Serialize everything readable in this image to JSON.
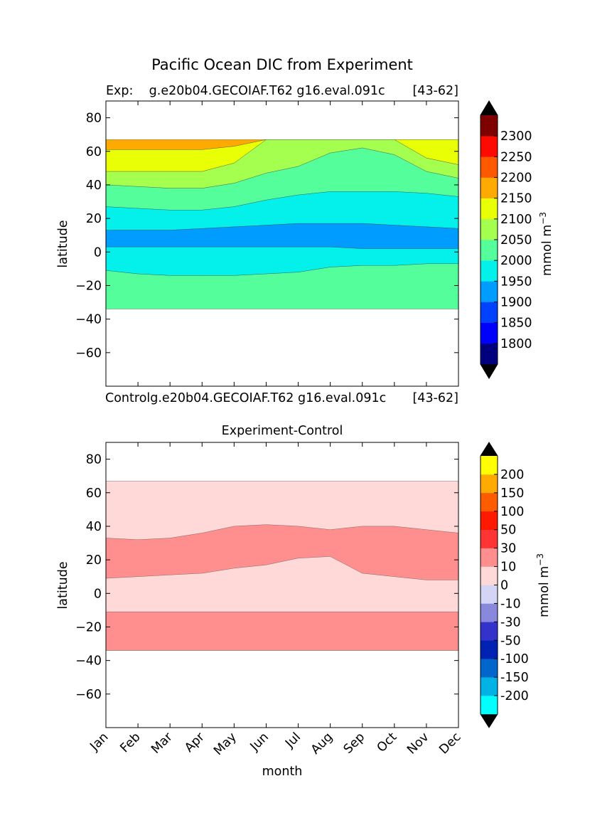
{
  "suptitle": "Pacific Ocean DIC from Experiment",
  "chart_data": [
    {
      "type": "heatmap",
      "left_title": "Exp:    g.e20b04.GECOIAF.T62 g16.eval.091c",
      "right_title": "[43-62]",
      "ylabel": "latitude",
      "xlabel": "",
      "ylim": [
        -80,
        90
      ],
      "xlim": [
        0,
        11
      ],
      "yticks": [
        80,
        60,
        40,
        20,
        0,
        -20,
        -40,
        -60
      ],
      "ytick_labels": [
        "80",
        "60",
        "40",
        "20",
        "0",
        "−20",
        "−40",
        "−60"
      ],
      "x_months": [
        0,
        1,
        2,
        3,
        4,
        5,
        6,
        7,
        8,
        9,
        10,
        11
      ],
      "data_lat_range": [
        -34,
        67
      ],
      "bands": [
        {
          "range": "2150-2200",
          "color": "#ffaa00",
          "lower": [
            61,
            61,
            61,
            61,
            63,
            67,
            67,
            67,
            67,
            67,
            67,
            67
          ],
          "upper": [
            67,
            67,
            67,
            67,
            67,
            67,
            67,
            67,
            67,
            67,
            67,
            67
          ]
        },
        {
          "range": "2100-2150",
          "color": "#e9ff06",
          "lower": [
            48,
            48,
            48,
            48,
            53,
            67,
            67,
            67,
            67,
            67,
            56,
            52
          ],
          "upper": [
            61,
            61,
            61,
            61,
            63,
            67,
            67,
            67,
            67,
            67,
            67,
            67
          ]
        },
        {
          "range": "2050-2100",
          "color": "#a5ff4f",
          "lower": [
            40,
            39,
            38,
            38,
            41,
            47,
            51,
            59,
            62,
            58,
            48,
            44
          ],
          "upper": [
            48,
            48,
            48,
            48,
            53,
            67,
            67,
            67,
            67,
            67,
            56,
            52
          ]
        },
        {
          "range": "2000-2050",
          "color": "#54ff9b",
          "lower": [
            27,
            26,
            25,
            25,
            27,
            31,
            34,
            36,
            36,
            36,
            35,
            33
          ],
          "upper": [
            40,
            39,
            38,
            38,
            41,
            47,
            51,
            59,
            62,
            58,
            48,
            44
          ]
        },
        {
          "range": "1950-2000",
          "color": "#04f0ea",
          "lower": [
            13,
            13,
            13,
            14,
            15,
            16,
            17,
            17,
            17,
            16,
            15,
            14
          ],
          "upper": [
            27,
            26,
            25,
            25,
            27,
            31,
            34,
            36,
            36,
            36,
            35,
            33
          ]
        },
        {
          "range": "1900-1950",
          "color": "#009cff",
          "lower": [
            3,
            3,
            3,
            3,
            3,
            3,
            3,
            3,
            2,
            2,
            2,
            2
          ],
          "upper": [
            13,
            13,
            13,
            14,
            15,
            16,
            17,
            17,
            17,
            16,
            15,
            14
          ]
        },
        {
          "range": "2000-2050",
          "color": "#54ff9b",
          "lower": [
            -34,
            -34,
            -34,
            -34,
            -34,
            -34,
            -34,
            -34,
            -34,
            -34,
            -34,
            -34
          ],
          "upper": [
            -11,
            -13,
            -14,
            -14,
            -14,
            -13,
            -12,
            -9,
            -8,
            -8,
            -7,
            -7
          ]
        },
        {
          "range": "1950-2000",
          "color": "#04f0ea",
          "lower": [
            -11,
            -13,
            -14,
            -14,
            -14,
            -13,
            -12,
            -9,
            -8,
            -8,
            -7,
            -7
          ],
          "upper": [
            3,
            3,
            3,
            3,
            3,
            3,
            3,
            3,
            2,
            2,
            2,
            2
          ]
        }
      ],
      "colorbar": {
        "label": "mmol m",
        "label_sup": "−3",
        "colors": [
          "#00007f",
          "#0000ff",
          "#0042ff",
          "#009cff",
          "#04f0ea",
          "#54ff9b",
          "#a5ff4f",
          "#e9ff06",
          "#ffaa00",
          "#ff5900",
          "#ff0a00",
          "#7f0000"
        ],
        "ticks": [
          "1800",
          "1850",
          "1900",
          "1950",
          "2000",
          "2050",
          "2100",
          "2150",
          "2200",
          "2250",
          "2300"
        ],
        "extend_color": "#000000"
      }
    },
    {
      "type": "heatmap",
      "left_title": "Controlg.e20b04.GECOIAF.T62 g16.eval.091c",
      "right_title": "[43-62]",
      "center_title": "Experiment-Control",
      "ylabel": "latitude",
      "xlabel": "month",
      "ylim": [
        -80,
        90
      ],
      "xlim": [
        0,
        11
      ],
      "yticks": [
        80,
        60,
        40,
        20,
        0,
        -20,
        -40,
        -60
      ],
      "ytick_labels": [
        "80",
        "60",
        "40",
        "20",
        "0",
        "−20",
        "−40",
        "−60"
      ],
      "categories": [
        "Jan",
        "Feb",
        "Mar",
        "Apr",
        "May",
        "Jun",
        "Jul",
        "Aug",
        "Sep",
        "Oct",
        "Nov",
        "Dec"
      ],
      "data_lat_range": [
        -34,
        67
      ],
      "bands": [
        {
          "range": "0-10",
          "color": "#ffd8d8",
          "lower": [
            -34,
            -34,
            -34,
            -34,
            -34,
            -34,
            -34,
            -34,
            -34,
            -34,
            -34,
            -34
          ],
          "upper": [
            67,
            67,
            67,
            67,
            67,
            67,
            67,
            67,
            67,
            67,
            67,
            67
          ]
        },
        {
          "range": "10-30",
          "color": "#ff8e8e",
          "lower": [
            9,
            10,
            11,
            12,
            15,
            17,
            21,
            22,
            12,
            10,
            8,
            8
          ],
          "upper": [
            33,
            32,
            33,
            36,
            40,
            41,
            40,
            38,
            40,
            40,
            38,
            36
          ]
        },
        {
          "range": "10-30",
          "color": "#ff8e8e",
          "lower": [
            -34,
            -34,
            -34,
            -34,
            -34,
            -34,
            -34,
            -34,
            -34,
            -34,
            -34,
            -34
          ],
          "upper": [
            -11,
            -11,
            -11,
            -11,
            -11,
            -11,
            -11,
            -11,
            -11,
            -11,
            -11,
            -11
          ]
        }
      ],
      "colorbar": {
        "label": "mmol m",
        "label_sup": "−3",
        "colors": [
          "#00ffff",
          "#00b2e5",
          "#0066cc",
          "#0022b2",
          "#3333cc",
          "#8888dd",
          "#d4d4f4",
          "#ffd8d8",
          "#ff8e8e",
          "#ff3535",
          "#ff1900",
          "#ff5c00",
          "#ffaa00",
          "#ffff00"
        ],
        "ticks": [
          "-200",
          "-150",
          "-100",
          "-50",
          "-30",
          "-10",
          "0",
          "10",
          "30",
          "50",
          "100",
          "150",
          "200"
        ],
        "extend_color": "#000000"
      }
    }
  ]
}
